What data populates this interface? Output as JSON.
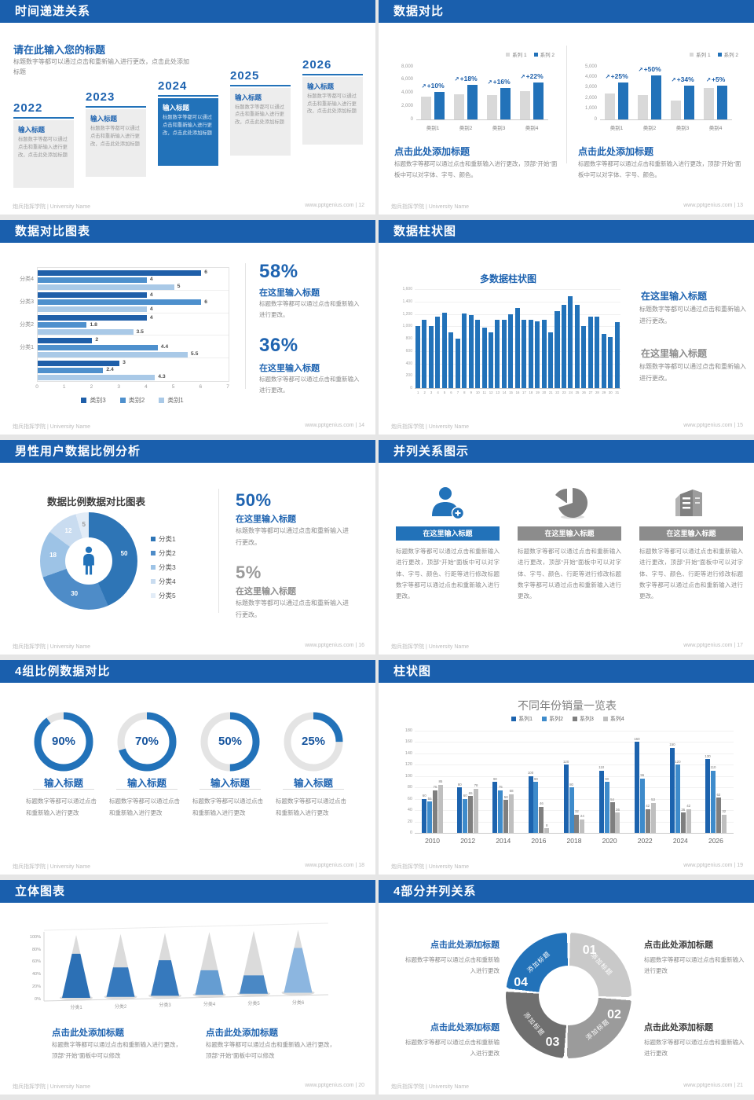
{
  "footer": {
    "org": "炮兵指挥学院 | University Name"
  },
  "slides": {
    "s12": {
      "title": "时间递进关系",
      "page": "12",
      "footer_right": "www.pptgenius.com | 12",
      "intro_title": "请在此输入您的标题",
      "intro_text": "标题数字等都可以通过点击和重新输入进行更改，点击此处添加标题",
      "timeline": {
        "items": [
          {
            "year": "2022",
            "title": "输入标题",
            "text": "标题数字等都可以通过点击和重新输入进行更改，点击此处添加标题",
            "highlight": false
          },
          {
            "year": "2023",
            "title": "输入标题",
            "text": "标题数字等都可以通过点击和重新输入进行更改，点击此处添加标题",
            "highlight": false
          },
          {
            "year": "2024",
            "title": "输入标题",
            "text": "标题数字等都可以通过点击和重新输入进行更改，点击此处添加标题",
            "highlight": true
          },
          {
            "year": "2025",
            "title": "输入标题",
            "text": "标题数字等都可以通过点击和重新输入进行更改，点击此处添加标题",
            "highlight": false
          },
          {
            "year": "2026",
            "title": "输入标题",
            "text": "标题数字等都可以通过点击和重新输入进行更改，点击此处添加标题",
            "highlight": false
          }
        ]
      }
    },
    "s13": {
      "title": "数据对比",
      "page": "13",
      "footer_right": "www.pptgenius.com | 13",
      "heading": "点击此处添加标题",
      "body": "标题数字等都可以通过点击和重新输入进行更改，顶部“开始”面板中可以对字体、字号、颜色。"
    },
    "s14": {
      "title": "数据对比图表",
      "page": "14",
      "footer_right": "www.pptgenius.com | 14",
      "stat1": "58%",
      "stat2": "36%",
      "stat_title": "在这里输入标题",
      "stat_body": "标题数字等都可以通过点击和重新输入进行更改。"
    },
    "s15": {
      "title": "数据柱状图",
      "page": "15",
      "footer_right": "www.pptgenius.com | 15",
      "heading": "在这里输入标题",
      "body": "标题数字等都可以通过点击和重新输入进行更改。"
    },
    "s16": {
      "title": "男性用户数据比例分析",
      "page": "16",
      "footer_right": "www.pptgenius.com | 16",
      "stat1": "50%",
      "stat2": "5%",
      "stat_title": "在这里输入标题",
      "stat_body": "标题数字等都可以通过点击和重新输入进行更改。"
    },
    "s17": {
      "title": "并列关系图示",
      "page": "17",
      "footer_right": "www.pptgenius.com | 17",
      "cols": [
        {
          "icon": "person-plus-icon",
          "banner": "在这里输入标题",
          "color": "#2272B9",
          "body": "标题数字等都可以通过点击和重新输入进行更改，顶部“开始”面板中可以对字体、字号、颜色、行距等进行修改标题数字等都可以通过点击和重新输入进行更改。"
        },
        {
          "icon": "pie-chart-icon",
          "banner": "在这里输入标题",
          "color": "#8C8C8C",
          "body": "标题数字等都可以通过点击和重新输入进行更改，顶部“开始”面板中可以对字体、字号、颜色、行距等进行修改标题数字等都可以通过点击和重新输入进行更改。"
        },
        {
          "icon": "building-icon",
          "banner": "在这里输入标题",
          "color": "#8C8C8C",
          "body": "标题数字等都可以通过点击和重新输入进行更改，顶部“开始”面板中可以对字体、字号、颜色、行距等进行修改标题数字等都可以通过点击和重新输入进行更改。"
        }
      ]
    },
    "s18": {
      "title": "4组比例数据对比",
      "page": "18",
      "footer_right": "www.pptgenius.com | 18"
    },
    "s19": {
      "title": "柱状图",
      "page": "19",
      "footer_right": "www.pptgenius.com | 19"
    },
    "s20": {
      "title": "立体图表",
      "page": "20",
      "footer_right": "www.pptgenius.com | 20",
      "heading": "点击此处添加标题",
      "body": "标题数字等都可以通过点击和重新输入进行更改，顶部“开始”面板中可以修改"
    },
    "s21": {
      "title": "4部分并列关系",
      "page": "21",
      "footer_right": "www.pptgenius.com | 21",
      "block_heading": "点击此处添加标题",
      "block_body": "标题数字等都可以通过点击和重新输入进行更改"
    }
  },
  "chart_data": [
    {
      "type": "bar",
      "slide": "13-left",
      "categories": [
        "类别1",
        "类别2",
        "类别3",
        "类别4"
      ],
      "series": [
        {
          "name": "系列 1",
          "color": "#D9D9D9",
          "values": [
            3500,
            3800,
            3700,
            4300
          ]
        },
        {
          "name": "系列 2",
          "color": "#2272B9",
          "values": [
            4200,
            5300,
            4800,
            5600
          ]
        }
      ],
      "deltas": [
        "+10%",
        "+18%",
        "+16%",
        "+22%"
      ],
      "ylim": [
        0,
        8000
      ],
      "yticks": [
        "8,000",
        "6,000",
        "4,000",
        "2,000",
        "0"
      ]
    },
    {
      "type": "bar",
      "slide": "13-right",
      "categories": [
        "类别1",
        "类别2",
        "类别3",
        "类别4"
      ],
      "series": [
        {
          "name": "系列 1",
          "color": "#D9D9D9",
          "values": [
            2500,
            2300,
            1800,
            3000
          ]
        },
        {
          "name": "系列 2",
          "color": "#2272B9",
          "values": [
            3500,
            4200,
            3200,
            3200
          ]
        }
      ],
      "deltas": [
        "+25%",
        "+50%",
        "+34%",
        "+5%"
      ],
      "ylim": [
        0,
        5000
      ],
      "yticks": [
        "5,000",
        "4,000",
        "3,000",
        "2,000",
        "1,000",
        "0"
      ]
    },
    {
      "type": "bar",
      "orientation": "horizontal",
      "slide": "14",
      "categories": [
        "分类4",
        "分类3",
        "分类2",
        "分类1",
        ""
      ],
      "series": [
        {
          "name": "类别3",
          "color": "#1F5FA9",
          "values": [
            6,
            4,
            4,
            2,
            3
          ]
        },
        {
          "name": "类别2",
          "color": "#4E90CD",
          "values": [
            4,
            6,
            1.8,
            4.4,
            2.4
          ]
        },
        {
          "name": "类别1",
          "color": "#A9C9E7",
          "values": [
            5,
            4,
            3.5,
            5.5,
            4.3
          ]
        }
      ],
      "xlim": [
        0,
        7
      ]
    },
    {
      "type": "bar",
      "slide": "15",
      "title": "多数据柱状图",
      "color": "#2272B9",
      "x": [
        1,
        2,
        3,
        4,
        5,
        6,
        7,
        8,
        9,
        10,
        11,
        12,
        13,
        14,
        15,
        16,
        17,
        18,
        19,
        20,
        21,
        22,
        23,
        24,
        25,
        26,
        27,
        28,
        29,
        30,
        31
      ],
      "values": [
        1000,
        1100,
        1000,
        1150,
        1220,
        900,
        800,
        1210,
        1180,
        1100,
        980,
        900,
        1100,
        1100,
        1190,
        1300,
        1100,
        1100,
        1080,
        1100,
        900,
        1250,
        1350,
        1480,
        1350,
        1000,
        1150,
        1160,
        880,
        820,
        1070
      ],
      "ylim": [
        0,
        1600
      ],
      "yticks": [
        "1,600",
        "1,400",
        "1,200",
        "1,000",
        "800",
        "600",
        "400",
        "200",
        "0"
      ]
    },
    {
      "type": "pie",
      "slide": "16",
      "title": "数据比例数据对比图表",
      "labels": [
        "分类1",
        "分类2",
        "分类3",
        "分类4",
        "分类5"
      ],
      "values": [
        50,
        30,
        18,
        12,
        5
      ],
      "colors": [
        "#2E75B6",
        "#4E8CC8",
        "#9DC3E6",
        "#C9DCF0",
        "#E2ECF7"
      ],
      "icon_color": "#2272B9"
    },
    {
      "type": "ring-progress",
      "slide": "18",
      "ring_color": "#2272B9",
      "track_color": "#E4E4E4",
      "items": [
        {
          "percent": 90,
          "label": "90%",
          "title": "输入标题",
          "body": "标题数字等都可以通过点击和重新输入进行更改"
        },
        {
          "percent": 70,
          "label": "70%",
          "title": "输入标题",
          "body": "标题数字等都可以通过点击和重新输入进行更改"
        },
        {
          "percent": 50,
          "label": "50%",
          "title": "输入标题",
          "body": "标题数字等都可以通过点击和重新输入进行更改"
        },
        {
          "percent": 25,
          "label": "25%",
          "title": "输入标题",
          "body": "标题数字等都可以通过点击和重新输入进行更改"
        }
      ]
    },
    {
      "type": "bar",
      "slide": "19",
      "title": "不同年份销量一览表",
      "categories": [
        "2010",
        "2012",
        "2014",
        "2016",
        "2018",
        "2020",
        "2022",
        "2024",
        "2026"
      ],
      "series": [
        {
          "name": "系列1",
          "color": "#1C63AE",
          "values": [
            60,
            80,
            90,
            100,
            120,
            110,
            160,
            150,
            130
          ]
        },
        {
          "name": "系列2",
          "color": "#3E8BCB",
          "values": [
            55,
            60,
            75,
            90,
            80,
            90,
            96,
            120,
            110
          ]
        },
        {
          "name": "系列3",
          "color": "#7F7F7F",
          "values": [
            75,
            65,
            58,
            46,
            32,
            54,
            42,
            36,
            62
          ]
        },
        {
          "name": "系列4",
          "color": "#BFBFBF",
          "values": [
            85,
            78,
            68,
            8,
            24,
            36,
            53,
            42,
            32
          ]
        }
      ],
      "ylim": [
        0,
        180
      ],
      "yticks": [
        "180",
        "160",
        "140",
        "120",
        "100",
        "80",
        "60",
        "40",
        "20",
        "0"
      ]
    },
    {
      "type": "cone",
      "slide": "20",
      "categories": [
        "分类1",
        "分类2",
        "分类3",
        "分类4",
        "分类5",
        "分类6"
      ],
      "values_pct": [
        72,
        48,
        58,
        40,
        30,
        73
      ],
      "colors": [
        "#2C70B5",
        "#3679BD",
        "#3679BD",
        "#659DD2",
        "#4A88C5",
        "#8CB6E0"
      ],
      "gray": "#DBDBDB",
      "yticks": [
        "100%",
        "80%",
        "60%",
        "40%",
        "20%",
        "0%"
      ]
    },
    {
      "type": "ring-segments",
      "slide": "21",
      "segments": [
        {
          "num": "01",
          "label": "添加标题",
          "color": "#C9C9C9"
        },
        {
          "num": "02",
          "label": "添加标题",
          "color": "#9B9B9B"
        },
        {
          "num": "03",
          "label": "添加标题",
          "color": "#6F6F6F"
        },
        {
          "num": "04",
          "label": "添加标题",
          "color": "#2272B9"
        }
      ]
    }
  ]
}
